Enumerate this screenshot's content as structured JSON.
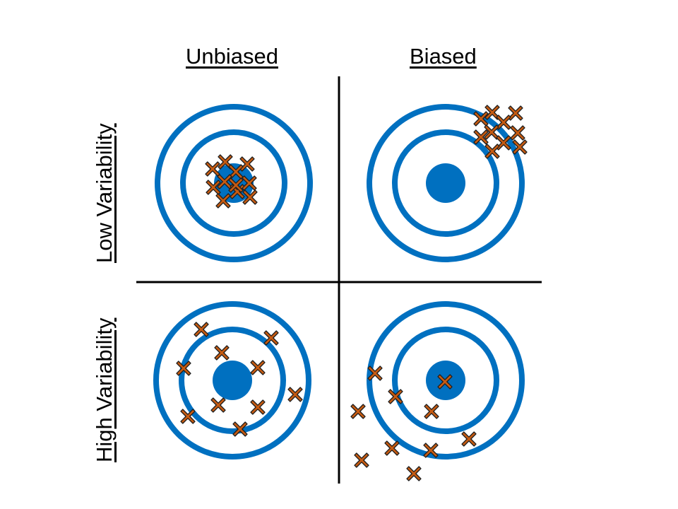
{
  "columns": [
    "Unbiased",
    "Biased"
  ],
  "rows": [
    "Low Variability",
    "High Variability"
  ],
  "colors": {
    "target": "#0070c0",
    "marker_fill": "#c55a11",
    "marker_stroke": "#1f1f1f",
    "divider": "#000000"
  },
  "marker_icon": "x-mark-icon",
  "target_icon": "bullseye-icon"
}
